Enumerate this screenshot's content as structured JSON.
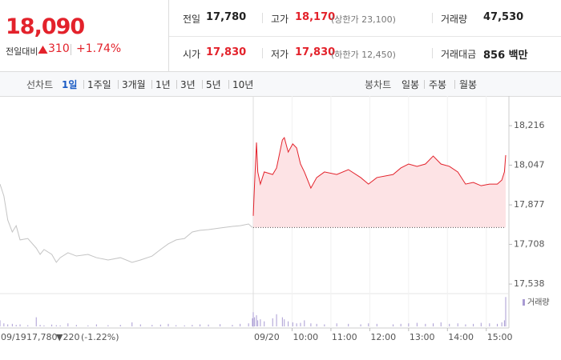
{
  "quote": {
    "price": "18,090",
    "change_label": "전일대비",
    "change": "310",
    "change_rate": "+1.74%"
  },
  "summary": [
    [
      {
        "label": "전일",
        "value": "17,780"
      },
      {
        "label": "고가",
        "value": "18,170",
        "note": "(상한가 23,100)"
      },
      {
        "label": "거래량",
        "value": "47,530"
      }
    ],
    [
      {
        "label": "시가",
        "value": "17,830"
      },
      {
        "label": "저가",
        "value": "17,830",
        "note": "(하한가 12,450)"
      },
      {
        "label": "거래대금",
        "value": "856 백만"
      }
    ]
  ],
  "line_tabs": {
    "label": "선차트",
    "items": [
      "1일",
      "1주일",
      "3개월",
      "1년",
      "3년",
      "5년",
      "10년"
    ],
    "active": 0
  },
  "candle_tabs": {
    "label": "봉차트",
    "items": [
      "일봉",
      "주봉",
      "월봉"
    ]
  },
  "chart_data": {
    "type": "line",
    "ylim": [
      17504,
      18326
    ],
    "yticks": [
      {
        "value": 17538,
        "label": "17,538"
      },
      {
        "value": 17708,
        "label": "17,708"
      },
      {
        "value": 17877,
        "label": "17,877"
      },
      {
        "value": 18047,
        "label": "18,047"
      },
      {
        "value": 18216,
        "label": "18,216"
      }
    ],
    "xlim": [
      0,
      390
    ],
    "xticks": [
      {
        "value": 60,
        "label": "10:00"
      },
      {
        "value": 120,
        "label": "11:00"
      },
      {
        "value": 180,
        "label": "12:00"
      },
      {
        "value": 240,
        "label": "13:00"
      },
      {
        "value": 300,
        "label": "14:00"
      },
      {
        "value": 360,
        "label": "15:00"
      }
    ],
    "volume_lim": [
      0,
      3000
    ],
    "volume_label": "거래량",
    "volume_color": "#a99bd3",
    "prev_close": {
      "value": 17780,
      "label": "17,780"
    },
    "prev_change": "▼220",
    "prev_change_rate": "(-1.22%)",
    "days": [
      {
        "date": "09/19",
        "color": "#c4c4c4",
        "x": [
          0,
          6,
          12,
          19,
          25,
          31,
          43,
          56,
          62,
          68,
          80,
          87,
          93,
          105,
          118,
          136,
          149,
          167,
          186,
          204,
          217,
          235,
          248,
          260,
          272,
          285,
          297,
          309,
          322,
          340,
          359,
          371,
          384,
          390
        ],
        "values": [
          17966,
          17915,
          17812,
          17761,
          17788,
          17727,
          17733,
          17692,
          17665,
          17686,
          17665,
          17631,
          17651,
          17672,
          17658,
          17665,
          17651,
          17641,
          17651,
          17631,
          17641,
          17658,
          17686,
          17710,
          17727,
          17733,
          17761,
          17768,
          17771,
          17778,
          17785,
          17788,
          17795,
          17780
        ],
        "volume": [
          600,
          300,
          200,
          250,
          150,
          200,
          120,
          900,
          150,
          100,
          180,
          120,
          100,
          300,
          150,
          100,
          200,
          120,
          150,
          400,
          200,
          150,
          180,
          250,
          120,
          100,
          150,
          200,
          180,
          220,
          150,
          250,
          300,
          800
        ]
      },
      {
        "date": "09/20",
        "color": "#e3222b",
        "fill_color": "#fde3e5",
        "x": [
          0,
          2,
          5,
          7,
          11,
          17,
          30,
          36,
          45,
          48,
          54,
          61,
          67,
          73,
          79,
          89,
          98,
          110,
          129,
          147,
          166,
          178,
          191,
          216,
          228,
          240,
          253,
          266,
          278,
          290,
          303,
          316,
          328,
          340,
          352,
          365,
          377,
          384,
          388,
          390
        ],
        "values": [
          17830,
          17966,
          18144,
          18018,
          17966,
          18018,
          18007,
          18035,
          18155,
          18165,
          18103,
          18138,
          18121,
          18052,
          18018,
          17949,
          17994,
          18018,
          18007,
          18028,
          17994,
          17966,
          17994,
          18007,
          18035,
          18052,
          18042,
          18052,
          18086,
          18052,
          18042,
          18018,
          17966,
          17973,
          17959,
          17966,
          17966,
          17983,
          18018,
          18090
        ],
        "volume": [
          1400,
          900,
          1100,
          600,
          700,
          500,
          800,
          1200,
          900,
          700,
          500,
          400,
          300,
          350,
          600,
          300,
          250,
          200,
          300,
          250,
          200,
          300,
          250,
          200,
          250,
          300,
          350,
          250,
          300,
          400,
          250,
          300,
          200,
          250,
          350,
          300,
          250,
          400,
          600,
          2900
        ]
      }
    ]
  }
}
